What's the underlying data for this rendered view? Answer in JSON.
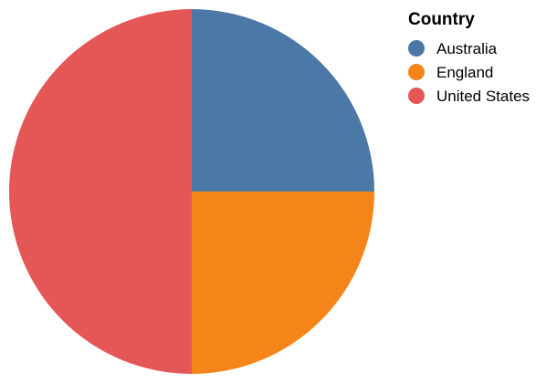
{
  "chart_data": {
    "type": "pie",
    "legend_title": "Country",
    "legend_position": "top-right",
    "slices": [
      {
        "label": "Australia",
        "value": 1,
        "color": "#4c78a8"
      },
      {
        "label": "England",
        "value": 1,
        "color": "#f58518"
      },
      {
        "label": "United States",
        "value": 2,
        "color": "#e45756"
      }
    ]
  }
}
